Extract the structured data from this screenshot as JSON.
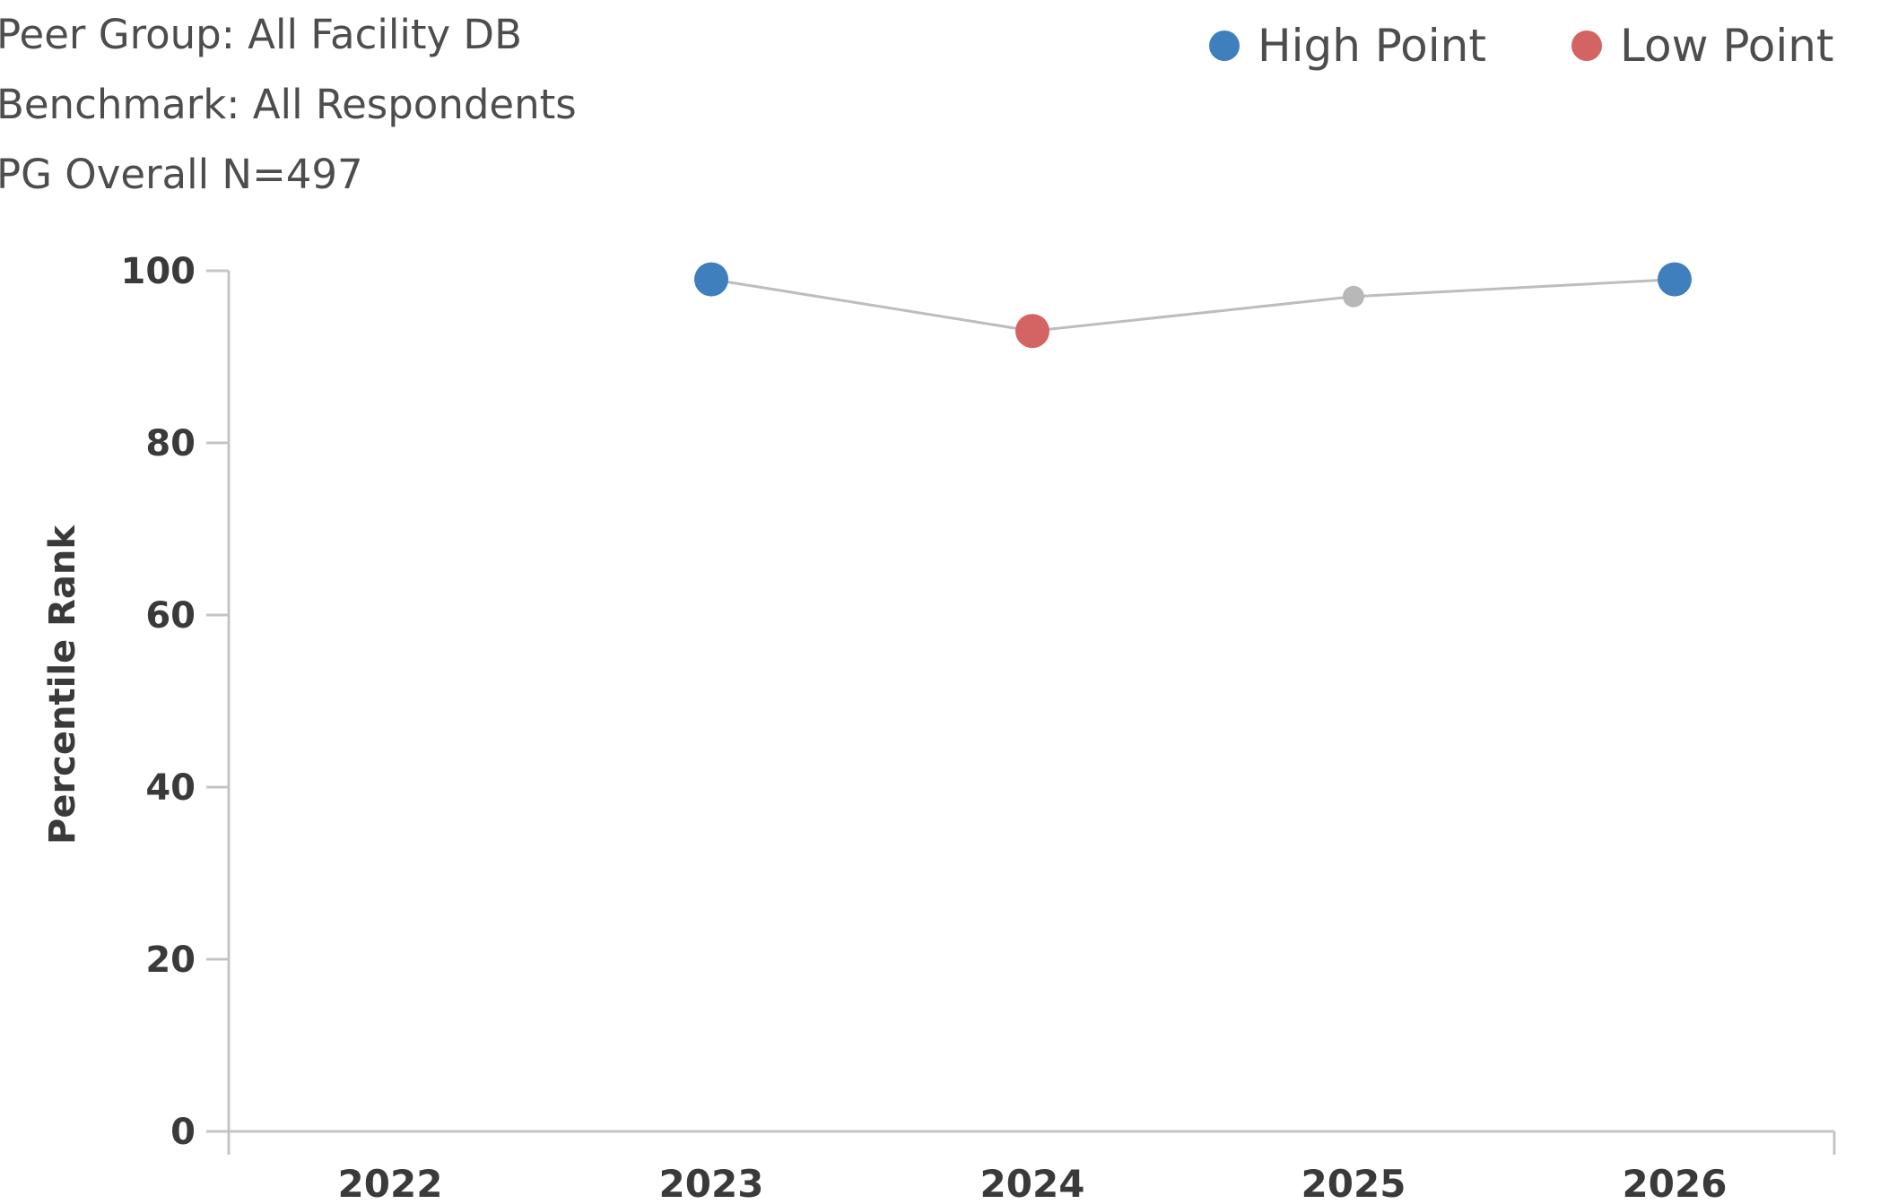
{
  "info": {
    "peer_group": "Peer Group: All Facility DB",
    "benchmark": "Benchmark: All Respondents",
    "pg_overall": "PG Overall N=497"
  },
  "legend": {
    "placement": "top-right",
    "high": {
      "label": "High Point",
      "color": "#3f7fbe"
    },
    "low": {
      "label": "Low Point",
      "color": "#d46363"
    }
  },
  "chart_data": {
    "type": "line",
    "ylabel": "Percentile Rank",
    "xlabel": "",
    "categories": [
      "2022",
      "2023",
      "2024",
      "2025",
      "2026"
    ],
    "yticks": [
      "0",
      "20",
      "40",
      "60",
      "80",
      "100"
    ],
    "ylim": [
      0,
      100
    ],
    "grid": false,
    "series": [
      {
        "values": [
          null,
          99,
          93,
          97,
          99
        ],
        "point_types": [
          "none",
          "high",
          "low",
          "normal",
          "high"
        ]
      }
    ],
    "colors": {
      "line": "#bdbdbd",
      "normal_point": "#b8b8b8",
      "axis": "#c4c4c4"
    }
  }
}
